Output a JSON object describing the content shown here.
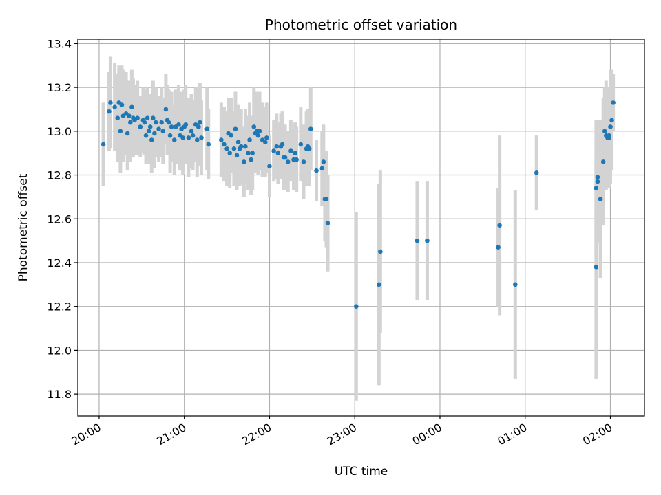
{
  "chart_data": {
    "type": "scatter",
    "title": "Photometric offset variation",
    "xlabel": "UTC time",
    "ylabel": "Photometric offset",
    "x_unit": "UTC time (HH:MM), dates after midnight wrap to next day",
    "xlim": [
      "19:45",
      "02:24"
    ],
    "ylim": [
      11.7,
      13.42
    ],
    "x_ticks": [
      "20:00",
      "21:00",
      "22:00",
      "23:00",
      "00:00",
      "01:00",
      "02:00"
    ],
    "y_ticks": [
      11.8,
      12.0,
      12.2,
      12.4,
      12.6,
      12.8,
      13.0,
      13.2,
      13.4
    ],
    "grid": true,
    "legend": "none",
    "colors": {
      "points": "#1f77b4",
      "errorbars": "#d3d3d3"
    },
    "series": [
      {
        "points": [
          [
            "20:03",
            12.94,
            0.19
          ],
          [
            "20:07",
            13.09,
            0.18
          ],
          [
            "20:08",
            13.13,
            0.21
          ],
          [
            "20:11",
            13.11,
            0.2
          ],
          [
            "20:13",
            13.06,
            0.2
          ],
          [
            "20:14",
            13.13,
            0.17
          ],
          [
            "20:15",
            13.0,
            0.19
          ],
          [
            "20:16",
            13.12,
            0.18
          ],
          [
            "20:17",
            13.07,
            0.21
          ],
          [
            "20:19",
            13.08,
            0.19
          ],
          [
            "20:20",
            12.99,
            0.17
          ],
          [
            "20:21",
            13.07,
            0.16
          ],
          [
            "20:22",
            13.04,
            0.18
          ],
          [
            "20:23",
            13.11,
            0.17
          ],
          [
            "20:24",
            13.06,
            0.18
          ],
          [
            "20:25",
            13.05,
            0.16
          ],
          [
            "20:27",
            13.06,
            0.17
          ],
          [
            "20:29",
            13.02,
            0.14
          ],
          [
            "20:31",
            13.05,
            0.15
          ],
          [
            "20:32",
            13.04,
            0.15
          ],
          [
            "20:33",
            12.98,
            0.13
          ],
          [
            "20:34",
            13.06,
            0.14
          ],
          [
            "20:35",
            13.0,
            0.15
          ],
          [
            "20:36",
            13.02,
            0.15
          ],
          [
            "20:37",
            12.96,
            0.15
          ],
          [
            "20:38",
            13.06,
            0.17
          ],
          [
            "20:39",
            12.99,
            0.16
          ],
          [
            "20:40",
            13.04,
            0.16
          ],
          [
            "20:42",
            13.01,
            0.15
          ],
          [
            "20:44",
            13.04,
            0.16
          ],
          [
            "20:45",
            13.0,
            0.15
          ],
          [
            "20:47",
            13.1,
            0.16
          ],
          [
            "20:48",
            13.05,
            0.16
          ],
          [
            "20:49",
            13.04,
            0.15
          ],
          [
            "20:50",
            12.98,
            0.17
          ],
          [
            "20:51",
            13.02,
            0.16
          ],
          [
            "20:53",
            12.96,
            0.16
          ],
          [
            "20:54",
            13.02,
            0.17
          ],
          [
            "20:56",
            13.03,
            0.18
          ],
          [
            "20:57",
            12.98,
            0.16
          ],
          [
            "20:58",
            13.01,
            0.17
          ],
          [
            "20:59",
            12.97,
            0.17
          ],
          [
            "21:00",
            13.02,
            0.17
          ],
          [
            "21:01",
            13.03,
            0.18
          ],
          [
            "21:03",
            12.97,
            0.18
          ],
          [
            "21:05",
            13.0,
            0.17
          ],
          [
            "21:06",
            12.98,
            0.16
          ],
          [
            "21:08",
            13.03,
            0.17
          ],
          [
            "21:09",
            12.96,
            0.17
          ],
          [
            "21:10",
            13.02,
            0.18
          ],
          [
            "21:11",
            13.04,
            0.18
          ],
          [
            "21:12",
            12.97,
            0.17
          ],
          [
            "21:16",
            13.01,
            0.19
          ],
          [
            "21:17",
            12.94,
            0.16
          ],
          [
            "21:26",
            12.96,
            0.17
          ],
          [
            "21:28",
            12.94,
            0.17
          ],
          [
            "21:30",
            12.92,
            0.17
          ],
          [
            "21:31",
            12.99,
            0.16
          ],
          [
            "21:32",
            12.9,
            0.16
          ],
          [
            "21:33",
            12.98,
            0.17
          ],
          [
            "21:35",
            12.92,
            0.17
          ],
          [
            "21:36",
            13.01,
            0.17
          ],
          [
            "21:37",
            12.89,
            0.16
          ],
          [
            "21:38",
            12.95,
            0.17
          ],
          [
            "21:39",
            12.92,
            0.17
          ],
          [
            "21:40",
            12.93,
            0.17
          ],
          [
            "21:42",
            12.86,
            0.16
          ],
          [
            "21:43",
            12.93,
            0.17
          ],
          [
            "21:45",
            12.9,
            0.17
          ],
          [
            "21:46",
            12.96,
            0.17
          ],
          [
            "21:47",
            12.87,
            0.16
          ],
          [
            "21:48",
            12.9,
            0.17
          ],
          [
            "21:49",
            13.02,
            0.18
          ],
          [
            "21:50",
            12.99,
            0.18
          ],
          [
            "21:51",
            13.0,
            0.18
          ],
          [
            "21:52",
            12.98,
            0.18
          ],
          [
            "21:53",
            13.0,
            0.18
          ],
          [
            "21:55",
            12.96,
            0.17
          ],
          [
            "21:57",
            12.95,
            0.16
          ],
          [
            "21:58",
            12.97,
            0.16
          ],
          [
            "22:00",
            12.84,
            0.14
          ],
          [
            "22:03",
            12.91,
            0.14
          ],
          [
            "22:05",
            12.93,
            0.15
          ],
          [
            "22:06",
            12.9,
            0.14
          ],
          [
            "22:08",
            12.93,
            0.15
          ],
          [
            "22:09",
            12.94,
            0.15
          ],
          [
            "22:10",
            12.88,
            0.15
          ],
          [
            "22:11",
            12.88,
            0.15
          ],
          [
            "22:13",
            12.86,
            0.14
          ],
          [
            "22:15",
            12.91,
            0.14
          ],
          [
            "22:17",
            12.87,
            0.14
          ],
          [
            "22:18",
            12.9,
            0.14
          ],
          [
            "22:19",
            12.87,
            0.15
          ],
          [
            "22:22",
            12.94,
            0.17
          ],
          [
            "22:24",
            12.86,
            0.17
          ],
          [
            "22:26",
            12.92,
            0.17
          ],
          [
            "22:27",
            12.93,
            0.17
          ],
          [
            "22:28",
            12.92,
            0.17
          ],
          [
            "22:29",
            13.01,
            0.19
          ],
          [
            "22:33",
            12.82,
            0.14
          ],
          [
            "22:37",
            12.83,
            0.17
          ],
          [
            "22:38",
            12.86,
            0.17
          ],
          [
            "22:39",
            12.69,
            0.19
          ],
          [
            "22:40",
            12.69,
            0.22
          ],
          [
            "22:41",
            12.58,
            0.22
          ],
          [
            "23:01",
            12.2,
            0.43
          ],
          [
            "23:17",
            12.3,
            0.46
          ],
          [
            "23:18",
            12.45,
            0.37
          ],
          [
            "23:44",
            12.5,
            0.27
          ],
          [
            "23:51",
            12.5,
            0.27
          ],
          [
            "00:41",
            12.47,
            0.27
          ],
          [
            "00:42",
            12.57,
            0.41
          ],
          [
            "00:53",
            12.3,
            0.43
          ],
          [
            "01:08",
            12.81,
            0.17
          ],
          [
            "01:50",
            12.38,
            0.51
          ],
          [
            "01:50",
            12.74,
            0.31
          ],
          [
            "01:51",
            12.77,
            0.28
          ],
          [
            "01:51",
            12.79,
            0.26
          ],
          [
            "01:53",
            12.69,
            0.36
          ],
          [
            "01:55",
            12.86,
            0.29
          ],
          [
            "01:56",
            13.0,
            0.2
          ],
          [
            "01:57",
            12.98,
            0.25
          ],
          [
            "01:58",
            12.97,
            0.22
          ],
          [
            "01:59",
            12.97,
            0.23
          ],
          [
            "01:59",
            12.98,
            0.22
          ],
          [
            "02:00",
            13.02,
            0.26
          ],
          [
            "02:01",
            13.05,
            0.23
          ],
          [
            "02:02",
            13.13,
            0.13
          ]
        ]
      }
    ]
  }
}
